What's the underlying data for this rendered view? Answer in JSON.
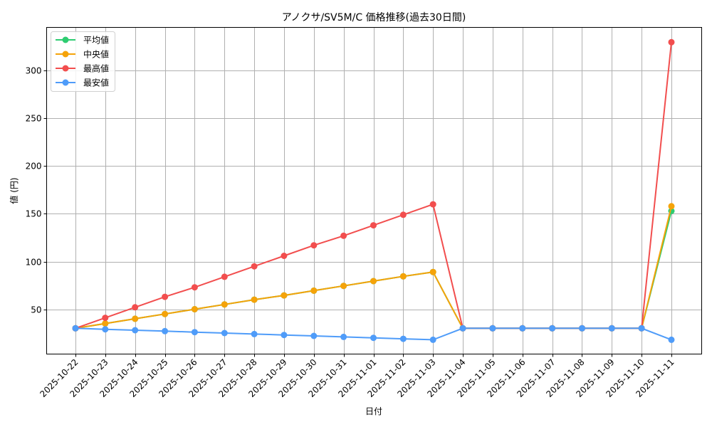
{
  "chart_data": {
    "type": "line",
    "title": "アノクサ/SV5M/C 価格推移(過去30日間)",
    "xlabel": "日付",
    "ylabel": "値 (円)",
    "ylim": [
      3,
      345.5
    ],
    "yticks": [
      50,
      100,
      150,
      200,
      250,
      300
    ],
    "grid": true,
    "legend_position": "upper left",
    "categories": [
      "2025-10-22",
      "2025-10-23",
      "2025-10-24",
      "2025-10-25",
      "2025-10-26",
      "2025-10-27",
      "2025-10-28",
      "2025-10-29",
      "2025-10-30",
      "2025-10-31",
      "2025-11-01",
      "2025-11-02",
      "2025-11-03",
      "2025-11-04",
      "2025-11-05",
      "2025-11-06",
      "2025-11-07",
      "2025-11-08",
      "2025-11-09",
      "2025-11-10",
      "2025-11-11"
    ],
    "series": [
      {
        "name": "平均値",
        "color": "#2ecc71",
        "values": [
          30,
          35,
          40,
          45,
          50,
          55,
          60,
          64.5,
          69.5,
          74.5,
          79.5,
          84.5,
          89,
          30,
          30,
          30,
          30,
          30,
          30,
          30,
          153
        ]
      },
      {
        "name": "中央値",
        "color": "#f5a30a",
        "values": [
          30,
          35,
          40,
          45,
          50,
          55,
          60,
          64.5,
          69.5,
          74.5,
          79.5,
          84.5,
          89,
          30,
          30,
          30,
          30,
          30,
          30,
          30,
          158
        ]
      },
      {
        "name": "最高値",
        "color": "#f24e4e",
        "values": [
          30,
          41,
          52,
          63,
          73,
          84,
          95,
          106,
          117,
          127,
          138,
          149,
          160,
          30,
          30,
          30,
          30,
          30,
          30,
          30,
          330
        ]
      },
      {
        "name": "最安値",
        "color": "#4f9cf9",
        "values": [
          30,
          29,
          28,
          27,
          26,
          25,
          24,
          23,
          22,
          21,
          20,
          19,
          18,
          30,
          30,
          30,
          30,
          30,
          30,
          30,
          18
        ]
      }
    ]
  }
}
